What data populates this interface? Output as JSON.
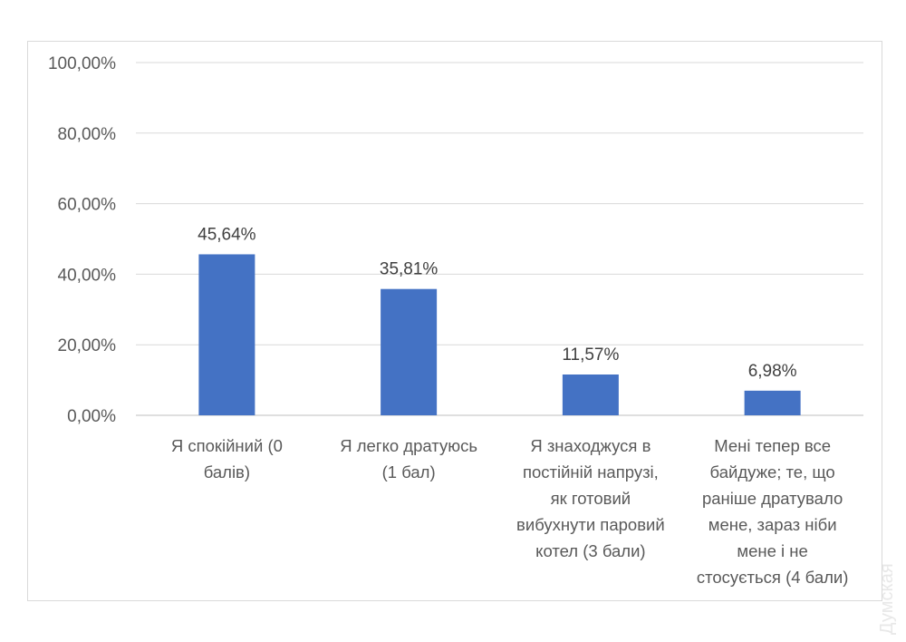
{
  "chart_data": {
    "type": "bar",
    "title": "",
    "xlabel": "",
    "ylabel": "",
    "ylim": [
      0,
      100
    ],
    "yticks": [
      "0,00%",
      "20,00%",
      "40,00%",
      "60,00%",
      "80,00%",
      "100,00%"
    ],
    "grid": true,
    "categories": [
      [
        "Я спокійний (0",
        "балів)"
      ],
      [
        "Я легко дратуюсь",
        "(1 бал)"
      ],
      [
        "Я знаходжуся в",
        "постійній напрузі,",
        "як готовий",
        "вибухнути паровий",
        "котел (3 бали)"
      ],
      [
        "Мені тепер все",
        "байдуже; те, що",
        "раніше дратувало",
        "мене, зараз ніби",
        "мене і не",
        "стосується (4 бали)"
      ]
    ],
    "values": [
      45.64,
      35.81,
      11.57,
      6.98
    ],
    "data_labels": [
      "45,64%",
      "35,81%",
      "11,57%",
      "6,98%"
    ],
    "bar_color": "#4472c4"
  },
  "watermark": "Думская"
}
